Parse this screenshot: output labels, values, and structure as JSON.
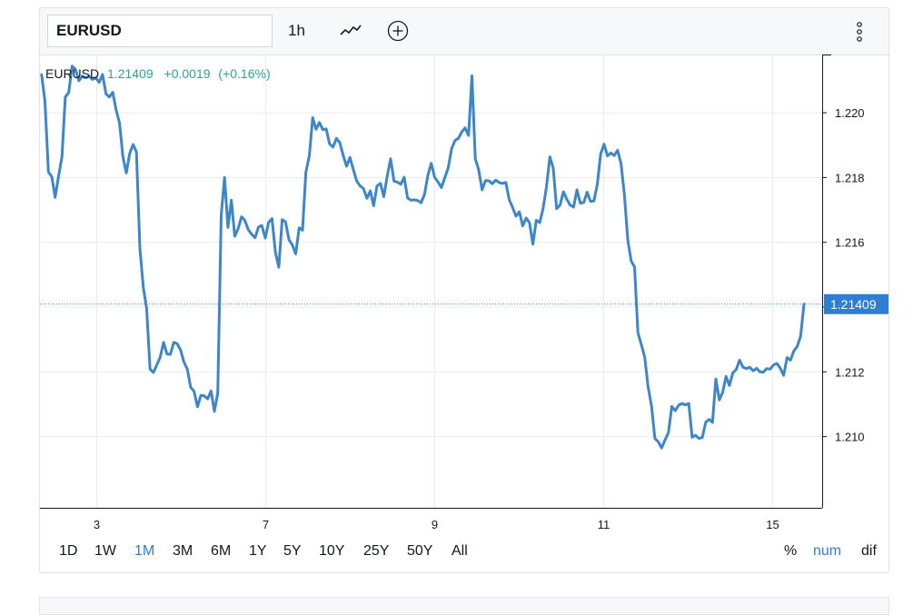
{
  "toolbar": {
    "symbol": "EURUSD",
    "interval": "1h",
    "chart_style_icon": "line-chart-icon",
    "compare_icon": "plus-circle-icon",
    "menu_icon": "more-vertical-icon"
  },
  "legend": {
    "symbol": "EURUSD",
    "price": "1.21409",
    "change": "+0.0019",
    "change_pct": "(+0.16%)"
  },
  "ranges": [
    "1D",
    "1W",
    "1M",
    "3M",
    "6M",
    "1Y",
    "5Y",
    "10Y",
    "25Y",
    "50Y",
    "All"
  ],
  "active_range": "1M",
  "scale_buttons": [
    "%",
    "num",
    "dif"
  ],
  "active_scale": "num",
  "colors": {
    "line": "#3d87c9",
    "accent": "#2e7fd1",
    "positive": "#26a69a",
    "grid": "#eaecef"
  },
  "chart_data": {
    "type": "line",
    "title": "",
    "xlabel": "",
    "ylabel": "",
    "ylim": [
      1.2078,
      1.2218
    ],
    "x_ticks": [
      "3",
      "7",
      "9",
      "11",
      "15"
    ],
    "y_ticks": [
      "1.210",
      "1.212",
      "1.214",
      "1.216",
      "1.218",
      "1.220"
    ],
    "last_price_label": "1.21409",
    "last_value": 1.21409,
    "grid": true,
    "series": [
      {
        "name": "EURUSD",
        "values": [
          1.22118,
          1.22035,
          1.21817,
          1.21803,
          1.21739,
          1.21803,
          1.21864,
          1.22049,
          1.22062,
          1.22144,
          1.22134,
          1.22099,
          1.22113,
          1.22108,
          1.22113,
          1.22103,
          1.22108,
          1.22094,
          1.22118,
          1.22058,
          1.22049,
          1.22063,
          1.22008,
          1.21968,
          1.21864,
          1.21814,
          1.21875,
          1.21902,
          1.21879,
          1.21581,
          1.21462,
          1.21396,
          1.21208,
          1.21198,
          1.21221,
          1.21245,
          1.21291,
          1.21255,
          1.21254,
          1.21291,
          1.21287,
          1.21268,
          1.2123,
          1.21208,
          1.21152,
          1.2114,
          1.21092,
          1.21127,
          1.21126,
          1.21116,
          1.21141,
          1.21078,
          1.21134,
          1.21684,
          1.218,
          1.21646,
          1.2173,
          1.21619,
          1.21642,
          1.21679,
          1.21667,
          1.21639,
          1.21625,
          1.21614,
          1.21647,
          1.21652,
          1.21613,
          1.21662,
          1.21673,
          1.21569,
          1.21523,
          1.2167,
          1.21663,
          1.21608,
          1.21592,
          1.21564,
          1.21645,
          1.21637,
          1.21817,
          1.21867,
          1.21985,
          1.21949,
          1.2197,
          1.21948,
          1.2195,
          1.21904,
          1.21894,
          1.21921,
          1.21908,
          1.21868,
          1.21835,
          1.21862,
          1.21825,
          1.21789,
          1.21774,
          1.21766,
          1.21736,
          1.21759,
          1.21713,
          1.21774,
          1.21782,
          1.21741,
          1.21804,
          1.21858,
          1.21789,
          1.21786,
          1.21779,
          1.21801,
          1.21737,
          1.2173,
          1.21731,
          1.21729,
          1.21722,
          1.21748,
          1.21807,
          1.21844,
          1.218,
          1.21786,
          1.21769,
          1.21799,
          1.2183,
          1.21889,
          1.21914,
          1.21921,
          1.21941,
          1.21953,
          1.2193,
          1.22114,
          1.21858,
          1.21824,
          1.21762,
          1.21791,
          1.2179,
          1.21781,
          1.21792,
          1.21785,
          1.21782,
          1.21785,
          1.21732,
          1.21708,
          1.21681,
          1.21694,
          1.21651,
          1.21675,
          1.2166,
          1.21594,
          1.21668,
          1.21661,
          1.21704,
          1.21771,
          1.21864,
          1.21829,
          1.21704,
          1.21715,
          1.21756,
          1.21733,
          1.21715,
          1.21709,
          1.21762,
          1.21721,
          1.21723,
          1.21755,
          1.21726,
          1.21728,
          1.21779,
          1.21873,
          1.21903,
          1.21867,
          1.21876,
          1.21868,
          1.21884,
          1.21843,
          1.21748,
          1.21606,
          1.21542,
          1.21524,
          1.21321,
          1.21284,
          1.21245,
          1.21154,
          1.21094,
          1.20994,
          1.20984,
          1.20965,
          1.2099,
          1.21012,
          1.21093,
          1.2108,
          1.21097,
          1.21102,
          1.21098,
          1.21102,
          1.20998,
          1.21004,
          1.20994,
          1.20997,
          1.21044,
          1.21053,
          1.21044,
          1.21178,
          1.21113,
          1.21137,
          1.21186,
          1.21158,
          1.21197,
          1.21207,
          1.21236,
          1.21214,
          1.2121,
          1.21214,
          1.21203,
          1.21211,
          1.212,
          1.21199,
          1.2121,
          1.21208,
          1.21221,
          1.21226,
          1.21211,
          1.21189,
          1.21244,
          1.21236,
          1.21264,
          1.21278,
          1.2131,
          1.21409
        ]
      }
    ]
  }
}
